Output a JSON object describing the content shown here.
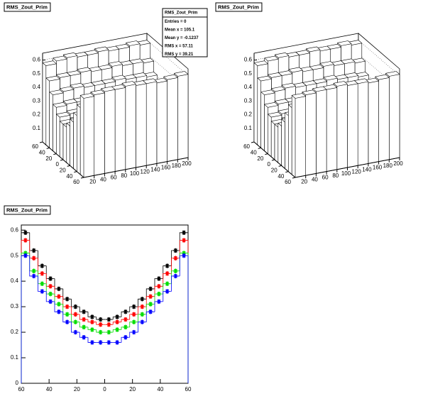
{
  "chart_data": [
    {
      "type": "lego",
      "title": "RMS_Zout_Prim",
      "stats": [
        "RMS_Zout_Prim",
        "Entries = 0",
        "Mean x = 105.1",
        "Mean y = -0.1237",
        "RMS x = 57.11",
        "RMS y = 39.21"
      ],
      "xlim": [
        0,
        200
      ],
      "xticks": [
        20,
        40,
        60,
        80,
        100,
        120,
        140,
        160,
        180,
        200
      ],
      "ylim": [
        -60,
        60
      ],
      "yticks": [
        {
          "value": -60,
          "label": "60"
        },
        {
          "value": -40,
          "label": "40"
        },
        {
          "value": -20,
          "label": "20"
        },
        0,
        20,
        40,
        60
      ],
      "zlim": [
        0,
        0.65
      ],
      "zticks": [
        0.1,
        0.2,
        0.3,
        0.4,
        0.5,
        0.6
      ],
      "values": [
        [
          0.58,
          0.59,
          0.6,
          0.6,
          0.61,
          0.6,
          0.6,
          0.59,
          0.6,
          0.61
        ],
        [
          0.49,
          0.5,
          0.51,
          0.5,
          0.5,
          0.51,
          0.5,
          0.5,
          0.49,
          0.5
        ],
        [
          0.41,
          0.42,
          0.42,
          0.43,
          0.42,
          0.42,
          0.41,
          0.42,
          0.43,
          0.42
        ],
        [
          0.34,
          0.35,
          0.35,
          0.36,
          0.35,
          0.35,
          0.36,
          0.35,
          0.35,
          0.34
        ],
        [
          0.29,
          0.3,
          0.3,
          0.31,
          0.3,
          0.3,
          0.3,
          0.31,
          0.3,
          0.3
        ],
        [
          0.26,
          0.27,
          0.27,
          0.27,
          0.28,
          0.27,
          0.27,
          0.27,
          0.28,
          0.27
        ],
        [
          0.26,
          0.27,
          0.28,
          0.27,
          0.27,
          0.27,
          0.28,
          0.27,
          0.27,
          0.26
        ],
        [
          0.29,
          0.3,
          0.31,
          0.3,
          0.3,
          0.31,
          0.3,
          0.3,
          0.3,
          0.29
        ],
        [
          0.34,
          0.35,
          0.35,
          0.35,
          0.36,
          0.35,
          0.35,
          0.36,
          0.35,
          0.35
        ],
        [
          0.41,
          0.42,
          0.43,
          0.42,
          0.42,
          0.42,
          0.43,
          0.42,
          0.42,
          0.41
        ],
        [
          0.49,
          0.5,
          0.5,
          0.51,
          0.5,
          0.5,
          0.51,
          0.5,
          0.5,
          0.49
        ],
        [
          0.58,
          0.6,
          0.61,
          0.6,
          0.6,
          0.61,
          0.6,
          0.6,
          0.61,
          0.6
        ]
      ]
    },
    {
      "type": "lego",
      "title": "RMS_Zout_Prim",
      "xlim": [
        0,
        200
      ],
      "xticks": [
        20,
        40,
        60,
        80,
        100,
        120,
        140,
        160,
        180,
        200
      ],
      "ylim": [
        -60,
        60
      ],
      "yticks": [
        {
          "value": -60,
          "label": "60"
        },
        {
          "value": -40,
          "label": "40"
        },
        {
          "value": -20,
          "label": "20"
        },
        0,
        20,
        40,
        60
      ],
      "zlim": [
        0,
        0.65
      ],
      "zticks": [
        0.1,
        0.2,
        0.3,
        0.4,
        0.5,
        0.6
      ],
      "values": [
        [
          0.58,
          0.59,
          0.6,
          0.6,
          0.61,
          0.6,
          0.6,
          0.59,
          0.6,
          0.61
        ],
        [
          0.49,
          0.5,
          0.51,
          0.5,
          0.5,
          0.51,
          0.5,
          0.5,
          0.49,
          0.5
        ],
        [
          0.41,
          0.42,
          0.42,
          0.43,
          0.42,
          0.42,
          0.41,
          0.42,
          0.43,
          0.42
        ],
        [
          0.34,
          0.35,
          0.35,
          0.36,
          0.35,
          0.35,
          0.36,
          0.35,
          0.35,
          0.34
        ],
        [
          0.29,
          0.3,
          0.3,
          0.31,
          0.3,
          0.3,
          0.3,
          0.31,
          0.3,
          0.3
        ],
        [
          0.26,
          0.27,
          0.27,
          0.27,
          0.28,
          0.27,
          0.27,
          0.27,
          0.28,
          0.27
        ],
        [
          0.26,
          0.27,
          0.28,
          0.27,
          0.27,
          0.27,
          0.28,
          0.27,
          0.27,
          0.26
        ],
        [
          0.29,
          0.3,
          0.31,
          0.3,
          0.3,
          0.31,
          0.3,
          0.3,
          0.3,
          0.29
        ],
        [
          0.34,
          0.35,
          0.35,
          0.35,
          0.36,
          0.35,
          0.35,
          0.36,
          0.35,
          0.35
        ],
        [
          0.41,
          0.42,
          0.43,
          0.42,
          0.42,
          0.42,
          0.43,
          0.42,
          0.42,
          0.41
        ],
        [
          0.49,
          0.5,
          0.5,
          0.51,
          0.5,
          0.5,
          0.51,
          0.5,
          0.5,
          0.49
        ],
        [
          0.58,
          0.6,
          0.61,
          0.6,
          0.6,
          0.61,
          0.6,
          0.6,
          0.61,
          0.6
        ]
      ]
    },
    {
      "type": "marker",
      "title": "RMS_Zout_Prim",
      "x": [
        -57,
        -51,
        -45,
        -39,
        -33,
        -27,
        -21,
        -15,
        -9,
        -3,
        3,
        9,
        15,
        21,
        27,
        33,
        39,
        45,
        51,
        57
      ],
      "xlim": [
        -60,
        60
      ],
      "xticks": [
        {
          "value": -60,
          "label": "60"
        },
        {
          "value": -40,
          "label": "40"
        },
        {
          "value": -20,
          "label": "20"
        },
        0,
        20,
        40,
        60
      ],
      "ylim": [
        0,
        0.62
      ],
      "yticks": [
        0,
        0.1,
        0.2,
        0.3,
        0.4,
        0.5,
        0.6
      ],
      "series": [
        {
          "color": "#000000",
          "values": [
            0.59,
            0.52,
            0.46,
            0.41,
            0.37,
            0.33,
            0.3,
            0.28,
            0.26,
            0.25,
            0.25,
            0.26,
            0.28,
            0.3,
            0.33,
            0.37,
            0.41,
            0.46,
            0.52,
            0.59
          ]
        },
        {
          "color": "#ff0000",
          "values": [
            0.56,
            0.49,
            0.43,
            0.38,
            0.34,
            0.3,
            0.27,
            0.25,
            0.24,
            0.23,
            0.23,
            0.24,
            0.25,
            0.27,
            0.3,
            0.34,
            0.38,
            0.43,
            0.49,
            0.56
          ]
        },
        {
          "color": "#00dd00",
          "values": [
            0.51,
            0.44,
            0.39,
            0.35,
            0.31,
            0.27,
            0.24,
            0.22,
            0.21,
            0.2,
            0.2,
            0.21,
            0.22,
            0.24,
            0.27,
            0.31,
            0.35,
            0.39,
            0.44,
            0.51
          ]
        },
        {
          "color": "#0000ff",
          "values": [
            0.5,
            0.42,
            0.36,
            0.32,
            0.28,
            0.24,
            0.2,
            0.18,
            0.16,
            0.16,
            0.16,
            0.16,
            0.18,
            0.2,
            0.24,
            0.28,
            0.32,
            0.36,
            0.42,
            0.5
          ]
        }
      ]
    }
  ]
}
